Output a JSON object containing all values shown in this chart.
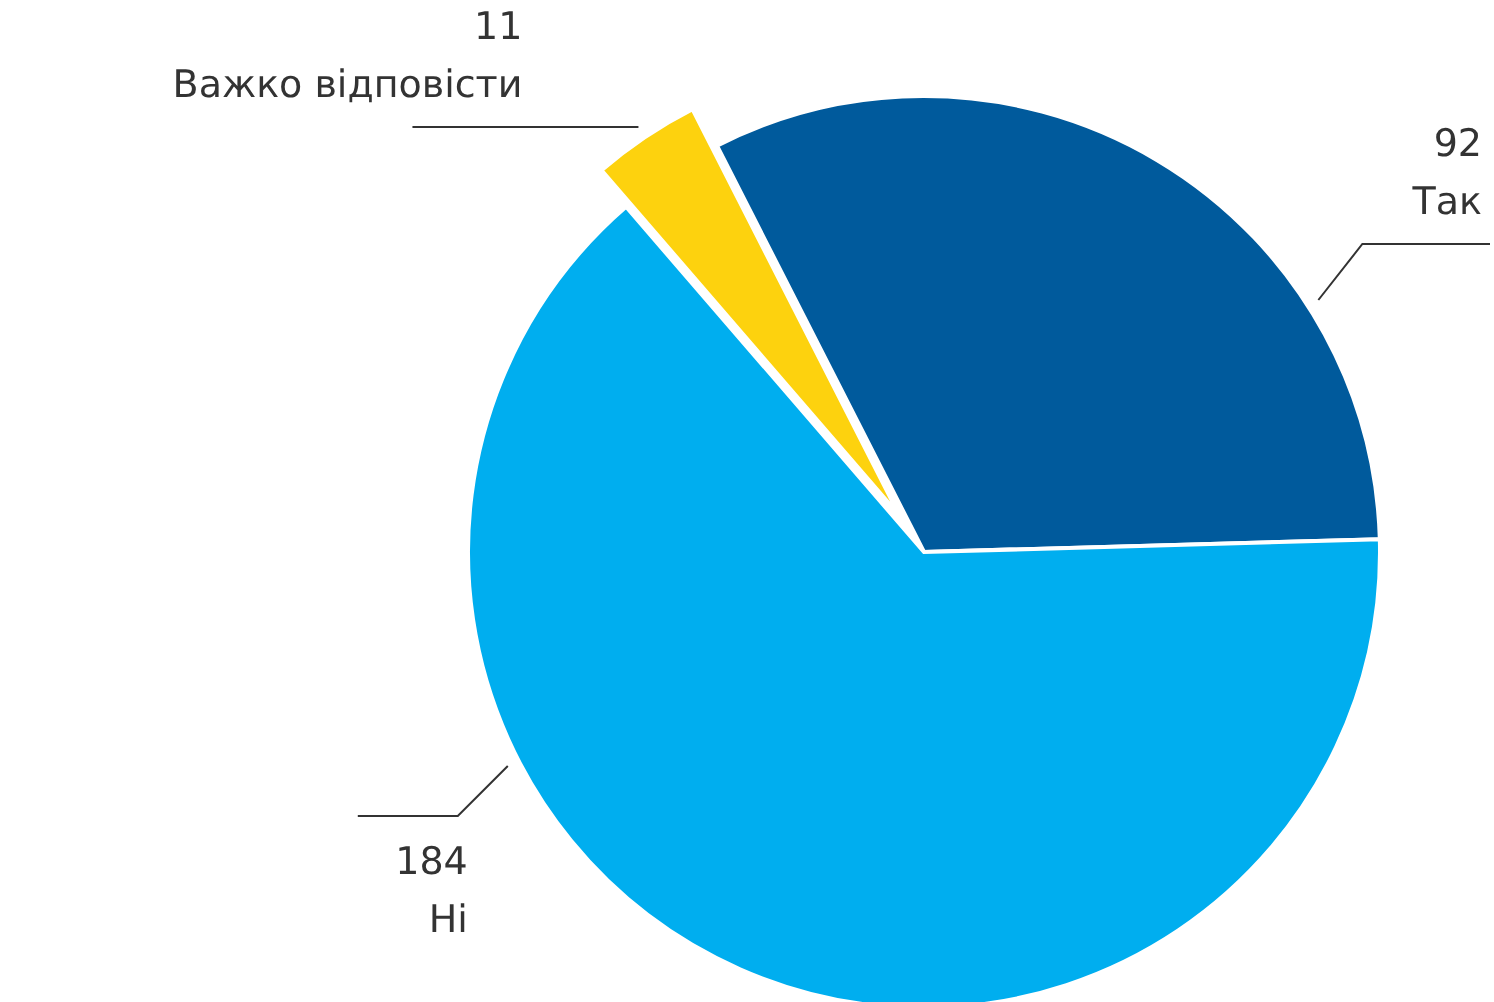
{
  "chart_data": {
    "type": "pie",
    "categories": [
      "Так",
      "Ні",
      "Важко відповісти"
    ],
    "values": [
      92,
      184,
      11
    ],
    "colors": [
      "#005a9c",
      "#00aeef",
      "#fdd20e"
    ],
    "data_labels": true
  }
}
